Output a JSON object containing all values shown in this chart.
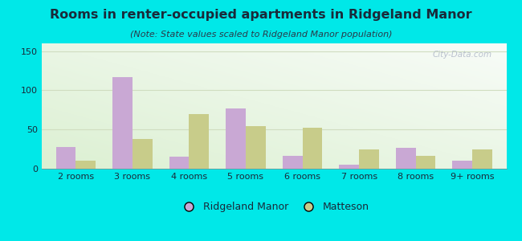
{
  "title": "Rooms in renter-occupied apartments in Ridgeland Manor",
  "subtitle": "(Note: State values scaled to Ridgeland Manor population)",
  "categories": [
    "2 rooms",
    "3 rooms",
    "4 rooms",
    "5 rooms",
    "6 rooms",
    "7 rooms",
    "8 rooms",
    "9+ rooms"
  ],
  "ridgeland_values": [
    28,
    117,
    15,
    77,
    16,
    5,
    27,
    10
  ],
  "matteson_values": [
    10,
    38,
    70,
    54,
    52,
    25,
    16,
    25
  ],
  "ridgeland_color": "#c9a8d4",
  "matteson_color": "#c8cc8a",
  "ylim": [
    0,
    160
  ],
  "yticks": [
    0,
    50,
    100,
    150
  ],
  "background_color": "#00e8e8",
  "bar_width": 0.35,
  "title_fontsize": 11.5,
  "subtitle_fontsize": 8,
  "legend_fontsize": 9,
  "tick_fontsize": 8,
  "title_color": "#1a2a3a",
  "subtitle_color": "#2a3a4a",
  "tick_color": "#1a2a3a",
  "watermark_text": "City-Data.com",
  "watermark_color": "#b0b8c8"
}
